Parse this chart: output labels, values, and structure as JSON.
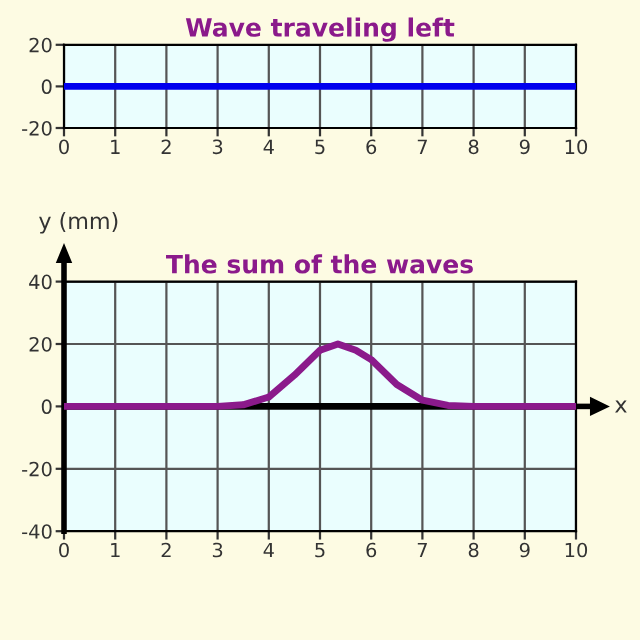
{
  "chart_data": [
    {
      "type": "line",
      "title": "Wave traveling left",
      "x": [
        0,
        10
      ],
      "series": [
        {
          "color": "#0000ee",
          "values": [
            0,
            0
          ]
        }
      ],
      "xlim": [
        0,
        10
      ],
      "xticks": [
        0,
        1,
        2,
        3,
        4,
        5,
        6,
        7,
        8,
        9,
        10
      ],
      "ylim": [
        -20,
        20
      ],
      "yticks": [
        -20,
        0,
        20
      ],
      "grid": true
    },
    {
      "type": "line",
      "title": "The sum of the waves",
      "ylabel": "y (mm)",
      "xlabel": "x",
      "x": [
        0,
        3,
        3.5,
        4,
        4.5,
        5,
        5.35,
        5.7,
        6,
        6.5,
        7,
        7.5,
        8,
        10
      ],
      "series": [
        {
          "color": "#8b1a8b",
          "values": [
            0,
            0,
            0.5,
            3,
            10,
            18,
            20,
            18,
            15,
            7,
            2,
            0.3,
            0,
            0
          ]
        }
      ],
      "xlim": [
        0,
        10
      ],
      "xticks": [
        0,
        1,
        2,
        3,
        4,
        5,
        6,
        7,
        8,
        9,
        10
      ],
      "ylim": [
        -40,
        40
      ],
      "yticks": [
        -40,
        -20,
        0,
        20,
        40
      ],
      "grid": true,
      "ref_lines": [
        {
          "axis": "y",
          "value": 0,
          "color": "#000000"
        }
      ]
    }
  ]
}
